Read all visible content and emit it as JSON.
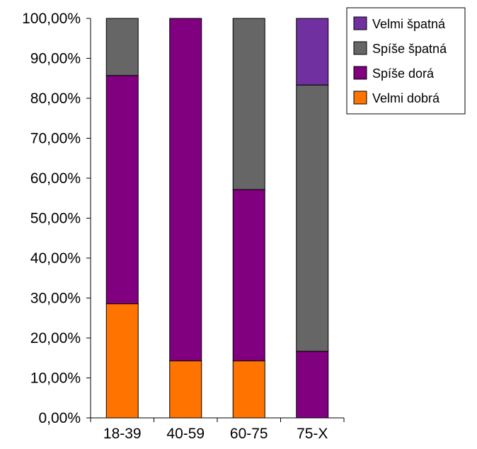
{
  "chart_data": {
    "type": "bar",
    "stacked": true,
    "categories": [
      "18-39",
      "40-59",
      "60-75",
      "75-X"
    ],
    "series": [
      {
        "name": "Velmi dobrá",
        "values": [
          28.57,
          14.29,
          14.29,
          0
        ],
        "color": "#FF7300"
      },
      {
        "name": "Spíše dorá",
        "values": [
          57.14,
          85.71,
          42.86,
          16.67
        ],
        "color": "#800080"
      },
      {
        "name": "Spíše špatná",
        "values": [
          14.29,
          0,
          42.85,
          66.66
        ],
        "color": "#666666"
      },
      {
        "name": "Velmi špatná",
        "values": [
          0,
          0,
          0,
          16.67
        ],
        "color": "#7030A0"
      }
    ],
    "ylim": [
      0,
      100
    ],
    "yticks": [
      "0,00%",
      "10,00%",
      "20,00%",
      "30,00%",
      "40,00%",
      "50,00%",
      "60,00%",
      "70,00%",
      "80,00%",
      "90,00%",
      "100,00%"
    ],
    "legend_position": "top-right",
    "legend_order": [
      3,
      2,
      1,
      0
    ],
    "grid": false,
    "title": "",
    "xlabel": "",
    "ylabel": ""
  }
}
